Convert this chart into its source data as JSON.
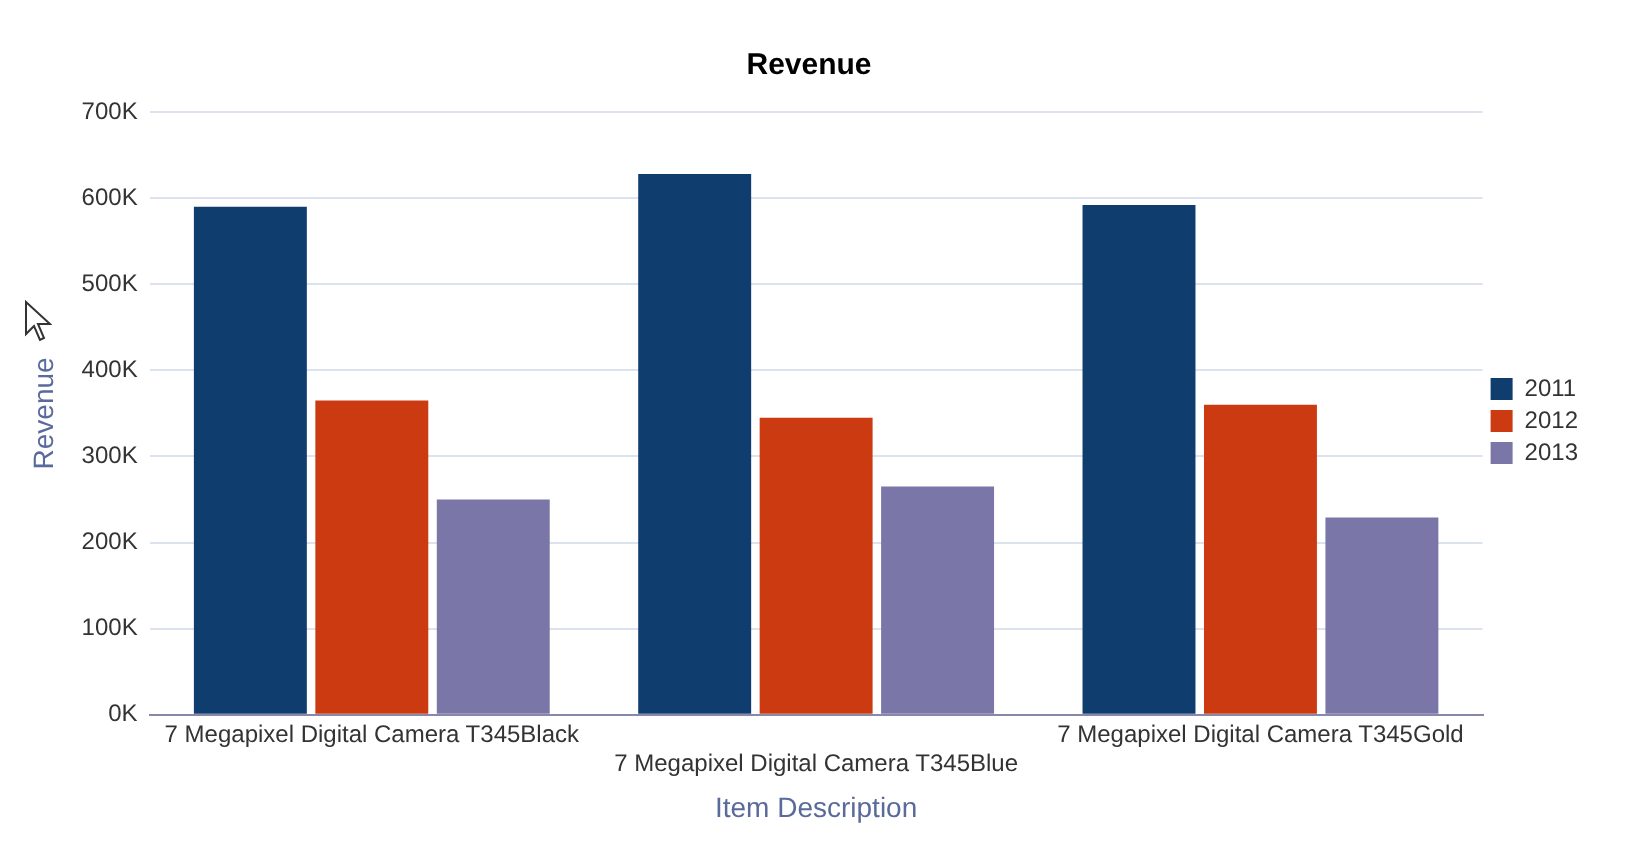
{
  "chart_data": {
    "type": "bar",
    "title": "Revenue",
    "xlabel": "Item Description",
    "ylabel": "Revenue",
    "categories": [
      "7 Megapixel Digital Camera T345Black",
      "7 Megapixel Digital Camera T345Blue",
      "7 Megapixel Digital Camera T345Gold"
    ],
    "series": [
      {
        "name": "2011",
        "color": "#0f3d6e",
        "values": [
          590000,
          628000,
          592000
        ]
      },
      {
        "name": "2012",
        "color": "#cc3a12",
        "values": [
          365000,
          345000,
          360000
        ]
      },
      {
        "name": "2013",
        "color": "#7a76a8",
        "values": [
          250000,
          265000,
          229000
        ]
      }
    ],
    "ylim": [
      0,
      700000
    ],
    "yticks": [
      {
        "value": 0,
        "label": "0K"
      },
      {
        "value": 100000,
        "label": "100K"
      },
      {
        "value": 200000,
        "label": "200K"
      },
      {
        "value": 300000,
        "label": "300K"
      },
      {
        "value": 400000,
        "label": "400K"
      },
      {
        "value": 500000,
        "label": "500K"
      },
      {
        "value": 600000,
        "label": "600K"
      },
      {
        "value": 700000,
        "label": "700K"
      }
    ],
    "grid": "y",
    "legend": "right"
  }
}
